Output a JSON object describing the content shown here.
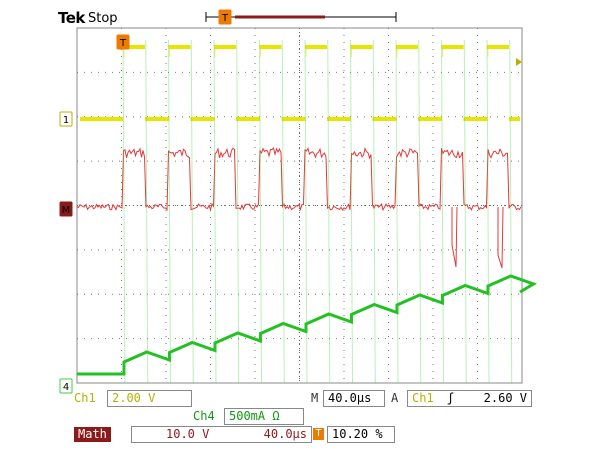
{
  "header": {
    "brand": "Tek",
    "status": "Stop"
  },
  "markers": {
    "trigger_top": "T",
    "ch1": "1",
    "math": "M",
    "ch4": "4",
    "trigger_bar": "T"
  },
  "readouts": {
    "ch1_label": "Ch1",
    "ch1_scale": "2.00 V",
    "ch4_label": "Ch4",
    "ch4_scale": "500mA Ω",
    "timebase_key": "M",
    "timebase": "40.0µs",
    "acq_key": "A",
    "trigger_source": "Ch1",
    "trigger_slope": "ʃ",
    "trigger_level": "2.60 V",
    "math_label": "Math",
    "math_scale": "10.0 V",
    "math_time": "40.0µs",
    "duty_icon": "T",
    "duty": "10.20 %"
  },
  "colors": {
    "ch1": "#e6e600",
    "math": "#e23a3a",
    "ch4": "#3ad23a",
    "ch4_trace": "#22c022",
    "grid": "#7a7a7a",
    "trigger": "#ee7a00",
    "math_tag": "#8b1a1a"
  }
}
